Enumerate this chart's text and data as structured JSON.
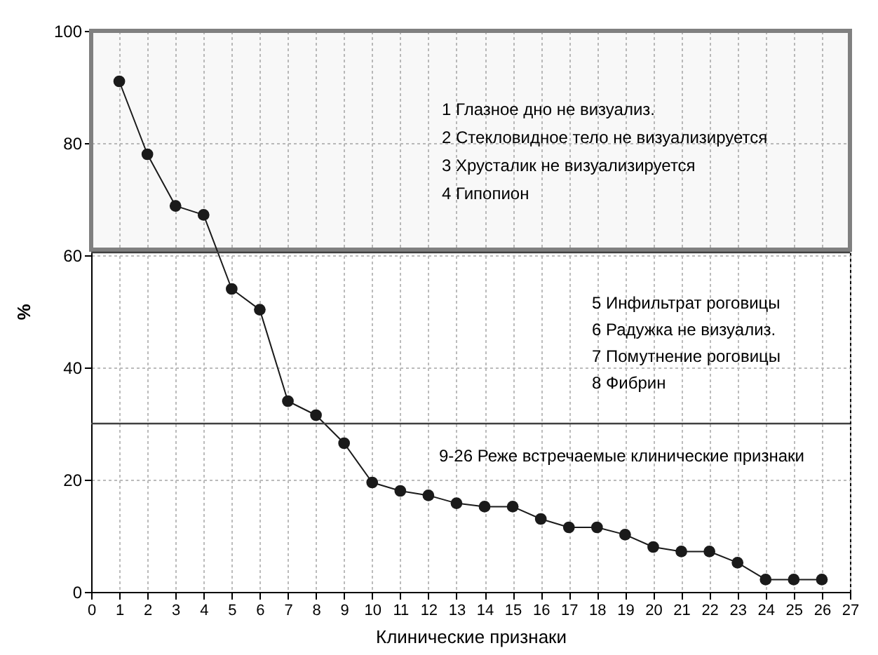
{
  "chart_data": {
    "type": "line",
    "xlabel": "Клинические признаки",
    "ylabel": "%",
    "x": [
      1,
      2,
      3,
      4,
      5,
      6,
      7,
      8,
      9,
      10,
      11,
      12,
      13,
      14,
      15,
      16,
      17,
      18,
      19,
      20,
      21,
      22,
      23,
      24,
      25,
      26
    ],
    "series": [
      {
        "color": "#1a1a1a",
        "values": [
          91,
          78,
          68.8,
          67.2,
          54,
          50.3,
          34,
          31.5,
          26.5,
          19.5,
          18,
          17.2,
          15.8,
          15.2,
          15.2,
          13,
          11.5,
          11.5,
          10.2,
          8,
          7.2,
          7.2,
          5.2,
          2.2,
          2.2,
          2.2
        ]
      }
    ],
    "xlim": [
      0,
      27
    ],
    "xticks": [
      0,
      1,
      2,
      3,
      4,
      5,
      6,
      7,
      8,
      9,
      10,
      11,
      12,
      13,
      14,
      15,
      16,
      17,
      18,
      19,
      20,
      21,
      22,
      23,
      24,
      25,
      26,
      27
    ],
    "ylim": [
      0,
      100
    ],
    "yticks": [
      0,
      20,
      40,
      60,
      80,
      100
    ],
    "grid": true,
    "marker": "circle",
    "line_style": "solid",
    "ref_lines": [
      {
        "axis": "y",
        "value": 60.5,
        "color": "#404040"
      },
      {
        "axis": "y",
        "value": 30,
        "color": "#404040"
      }
    ],
    "bands": [
      {
        "axis": "y",
        "from": 61,
        "to": 100,
        "color": "#808080"
      }
    ],
    "annotations": [
      "1 Глазное дно не визуализ.",
      "2 Стекловидное тело не визуализируется",
      "3 Хрусталик не визуализируется",
      "4 Гипопион",
      "5 Инфильтрат роговицы",
      "6 Радужка не визуализ.",
      "7 Помутнение роговицы",
      "8 Фибрин",
      "9-26 Реже встречаемые клинические признаки"
    ]
  }
}
